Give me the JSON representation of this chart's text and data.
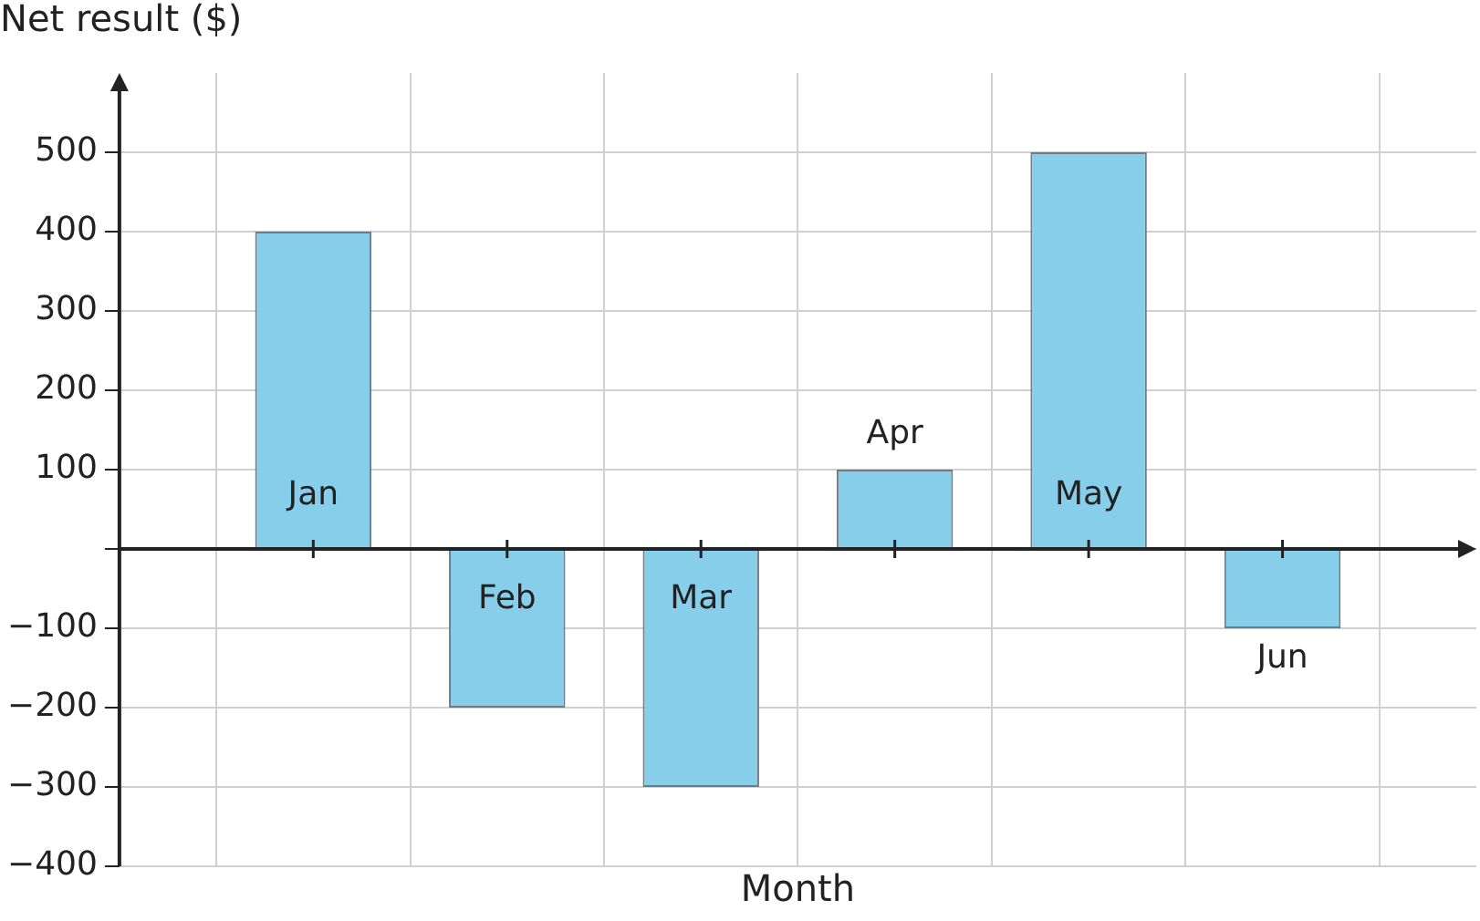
{
  "chart_data": {
    "type": "bar",
    "ylabel": "Net result ($)",
    "xlabel": "Month",
    "categories": [
      "Jan",
      "Feb",
      "Mar",
      "Apr",
      "May",
      "Jun"
    ],
    "values": [
      400,
      -200,
      -300,
      100,
      500,
      -100
    ],
    "color": "#87ceeb",
    "ylim": [
      -400,
      600
    ],
    "yticks": [
      -400,
      -300,
      -200,
      -100,
      {
        "value": 0,
        "label": null
      },
      100,
      200,
      300,
      400,
      500
    ],
    "grid": true
  }
}
